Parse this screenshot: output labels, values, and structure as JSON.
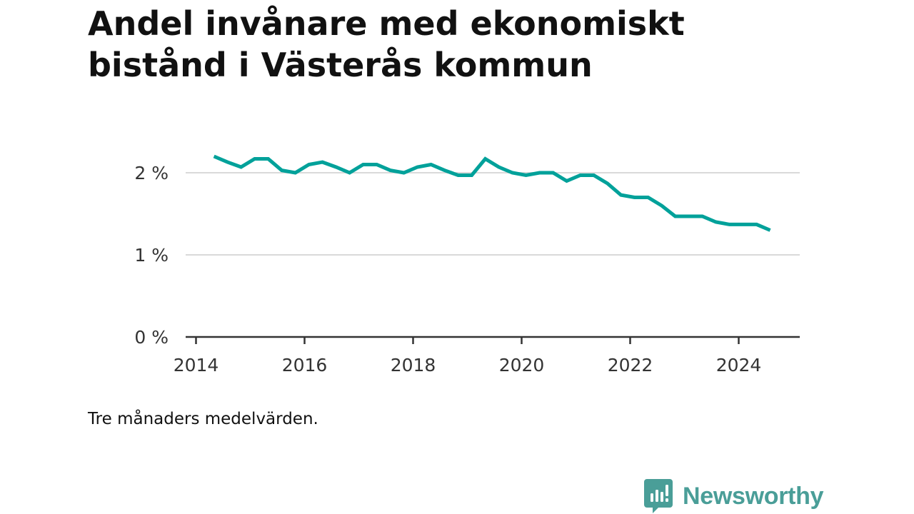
{
  "chart_data": {
    "type": "line",
    "title": "Andel invånare med ekonomiskt bistånd i Västerås kommun",
    "footnote": "Tre månaders medelvärden.",
    "y_ticks": [
      "0 %",
      "1 %",
      "2 %"
    ],
    "y_tick_values": [
      0,
      1,
      2
    ],
    "x_ticks": [
      "2014",
      "2016",
      "2018",
      "2020",
      "2022",
      "2024"
    ],
    "x_tick_values": [
      2014,
      2016,
      2018,
      2020,
      2022,
      2024
    ],
    "ylim": [
      0,
      2.5
    ],
    "xlim": [
      2013.8,
      2025.1
    ],
    "grid": true,
    "line_color": "#00a19a",
    "series": [
      {
        "x": [
          2014.33,
          2014.58,
          2014.83,
          2015.08,
          2015.33,
          2015.58,
          2015.83,
          2016.08,
          2016.33,
          2016.58,
          2016.83,
          2017.08,
          2017.33,
          2017.58,
          2017.83,
          2018.08,
          2018.33,
          2018.58,
          2018.83,
          2019.08,
          2019.33,
          2019.58,
          2019.83,
          2020.08,
          2020.33,
          2020.58,
          2020.83,
          2021.08,
          2021.33,
          2021.58,
          2021.83,
          2022.08,
          2022.33,
          2022.58,
          2022.83,
          2023.08,
          2023.33,
          2023.58,
          2023.83,
          2024.08,
          2024.33,
          2024.58
        ],
        "values": [
          2.2,
          2.13,
          2.07,
          2.17,
          2.17,
          2.03,
          2.0,
          2.1,
          2.13,
          2.07,
          2.0,
          2.1,
          2.1,
          2.03,
          2.0,
          2.07,
          2.1,
          2.03,
          1.97,
          1.97,
          2.17,
          2.07,
          2.0,
          1.97,
          2.0,
          2.0,
          1.9,
          1.97,
          1.97,
          1.87,
          1.73,
          1.7,
          1.7,
          1.6,
          1.47,
          1.47,
          1.47,
          1.4,
          1.37,
          1.37,
          1.37,
          1.3
        ]
      }
    ]
  },
  "brand": {
    "name": "Newsworthy",
    "icon": "newsworthy-logo-icon",
    "color": "#4a9e98"
  }
}
